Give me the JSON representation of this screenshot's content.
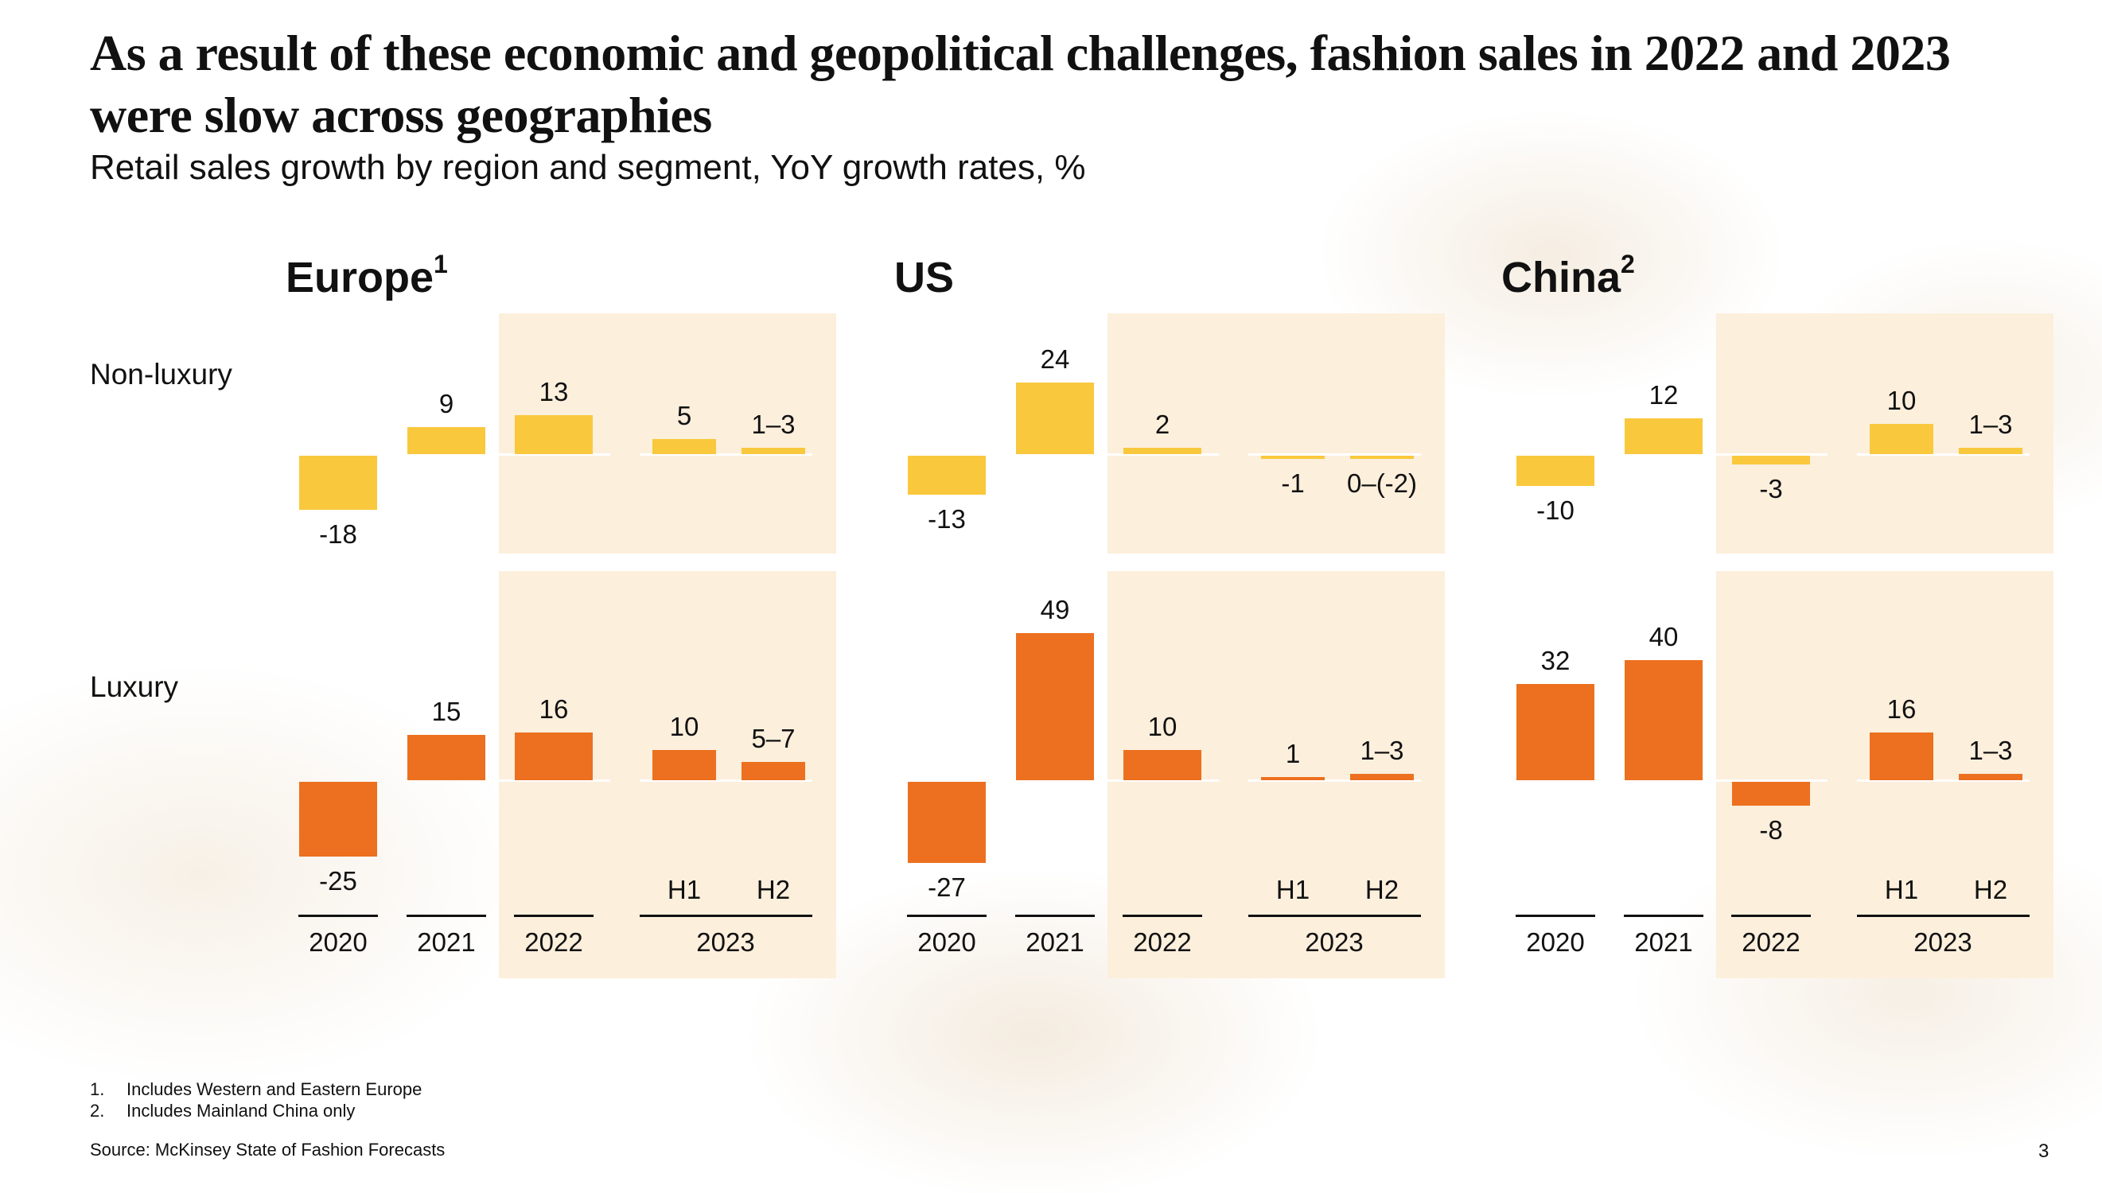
{
  "title": "As a result of these economic and geopolitical challenges, fashion sales in 2022 and 2023 were slow across geographies",
  "subtitle": "Retail sales growth by region and segment, YoY growth rates, %",
  "row_labels": [
    "Non-luxury",
    "Luxury"
  ],
  "colors": {
    "non_luxury": "#f9c83d",
    "luxury": "#ec701f",
    "highlight_panel": "#fcefdc"
  },
  "chart_data": [
    {
      "type": "bar",
      "title": "Europe",
      "footnote_mark": "1",
      "categories": [
        "2020",
        "2021",
        "2022",
        "2023"
      ],
      "sub_categories": [
        "H1",
        "H2"
      ],
      "series": [
        {
          "name": "Non-luxury",
          "values": [
            {
              "label": "-18",
              "value": -18
            },
            {
              "label": "9",
              "value": 9
            },
            {
              "label": "13",
              "value": 13
            },
            {
              "label": "5",
              "value": 5
            },
            {
              "label": "1–3",
              "range": [
                1,
                3
              ]
            }
          ]
        },
        {
          "name": "Luxury",
          "values": [
            {
              "label": "-25",
              "value": -25
            },
            {
              "label": "15",
              "value": 15
            },
            {
              "label": "16",
              "value": 16
            },
            {
              "label": "10",
              "value": 10
            },
            {
              "label": "5–7",
              "range": [
                5,
                7
              ]
            }
          ]
        }
      ]
    },
    {
      "type": "bar",
      "title": "US",
      "footnote_mark": "",
      "categories": [
        "2020",
        "2021",
        "2022",
        "2023"
      ],
      "sub_categories": [
        "H1",
        "H2"
      ],
      "series": [
        {
          "name": "Non-luxury",
          "values": [
            {
              "label": "-13",
              "value": -13
            },
            {
              "label": "24",
              "value": 24
            },
            {
              "label": "2",
              "value": 2
            },
            {
              "label": "-1",
              "value": -1
            },
            {
              "label": "0–(-2)",
              "range": [
                0,
                -2
              ]
            }
          ]
        },
        {
          "name": "Luxury",
          "values": [
            {
              "label": "-27",
              "value": -27
            },
            {
              "label": "49",
              "value": 49
            },
            {
              "label": "10",
              "value": 10
            },
            {
              "label": "1",
              "value": 1
            },
            {
              "label": "1–3",
              "range": [
                1,
                3
              ]
            }
          ]
        }
      ]
    },
    {
      "type": "bar",
      "title": "China",
      "footnote_mark": "2",
      "categories": [
        "2020",
        "2021",
        "2022",
        "2023"
      ],
      "sub_categories": [
        "H1",
        "H2"
      ],
      "series": [
        {
          "name": "Non-luxury",
          "values": [
            {
              "label": "-10",
              "value": -10
            },
            {
              "label": "12",
              "value": 12
            },
            {
              "label": "-3",
              "value": -3
            },
            {
              "label": "10",
              "value": 10
            },
            {
              "label": "1–3",
              "range": [
                1,
                3
              ]
            }
          ]
        },
        {
          "name": "Luxury",
          "values": [
            {
              "label": "32",
              "value": 32
            },
            {
              "label": "40",
              "value": 40
            },
            {
              "label": "-8",
              "value": -8
            },
            {
              "label": "16",
              "value": 16
            },
            {
              "label": "1–3",
              "range": [
                1,
                3
              ]
            }
          ]
        }
      ]
    }
  ],
  "footnotes": [
    {
      "mark": "1.",
      "text": "Includes Western and Eastern Europe"
    },
    {
      "mark": "2.",
      "text": "Includes Mainland China only"
    }
  ],
  "source": "Source: McKinsey State of Fashion Forecasts",
  "page_number": "3"
}
